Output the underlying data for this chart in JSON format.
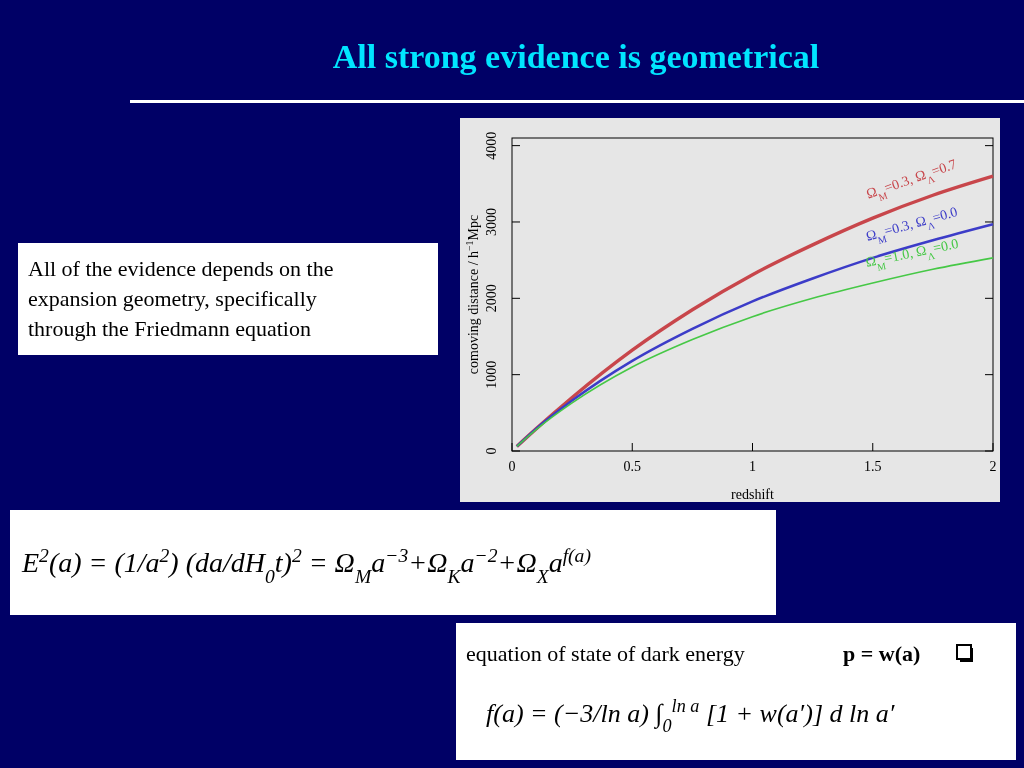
{
  "chart_data": {
    "type": "line",
    "title": "All strong evidence is geometrical",
    "xlabel": "redshift",
    "ylabel": "comoving distance / h$^{−1}$Mpc",
    "x": [
      0.02,
      0.1,
      0.25,
      0.5,
      0.75,
      1,
      1.25,
      1.5,
      1.75,
      2
    ],
    "series": [
      {
        "name": "Ω$_{M}$=0.3, Ω$_{Λ}$=0.7",
        "color": "#c8464b",
        "values": [
          60,
          290,
          700,
          1320,
          1850,
          2310,
          2700,
          3050,
          3350,
          3600
        ]
      },
      {
        "name": "Ω$_{M}$=0.3, Ω$_{Λ}$=0.0",
        "color": "#3c3cc8",
        "values": [
          60,
          290,
          660,
          1180,
          1600,
          1960,
          2260,
          2530,
          2760,
          2970
        ]
      },
      {
        "name": "Ω$_{M}$=1.0, Ω$_{Λ}$=0.0",
        "color": "#46c846",
        "values": [
          60,
          280,
          630,
          1100,
          1460,
          1760,
          2000,
          2200,
          2380,
          2530
        ]
      }
    ],
    "xlim": [
      0,
      2
    ],
    "xticks": [
      0,
      0.5,
      1,
      1.5,
      2
    ],
    "ylim": [
      0,
      4100
    ],
    "yticks": [
      0,
      1000,
      2000,
      3000,
      4000
    ],
    "grid": false,
    "marker": "none",
    "line_style": "solid",
    "annotations": [
      "All of the evidence depends on the expansion geometry, specifically through the Friedmann equation",
      "E$^{2}$(a) = (1/a$^{2}$) (da/dH$_{0}$t)$^{2}$ = Ω$_{M}$a$^{−3}$+Ω$_{K}$a$^{−2}$+Ω$_{X}$a$^{f(a)}$",
      "equation of state of dark energy",
      "p = w(a)",
      "f(a) = (−3/ln a) ∫$_{0}$$^{ln a}$ [1 + w(a′)] d ln a′"
    ]
  }
}
